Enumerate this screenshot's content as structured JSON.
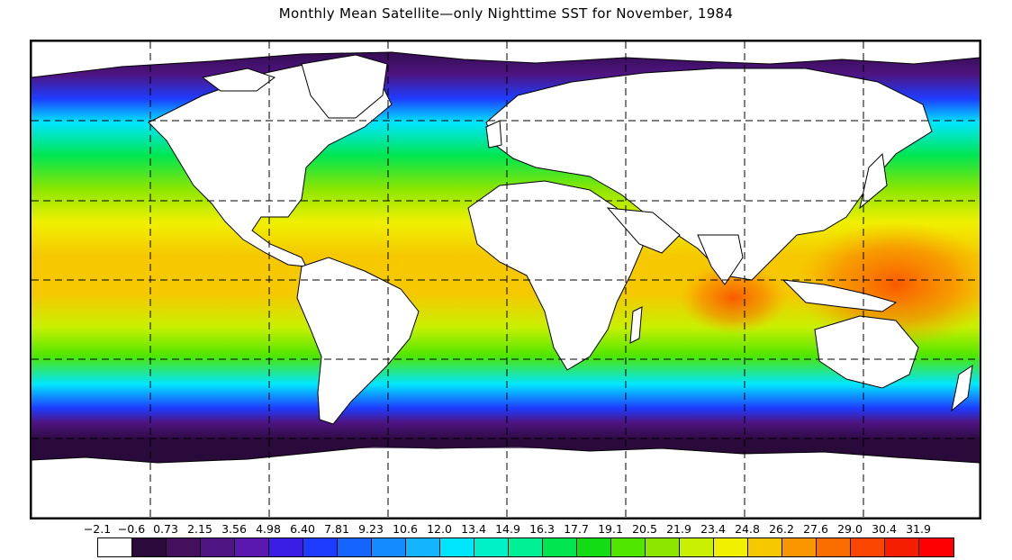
{
  "title": "Monthly Mean Satellite—only Nighttime SST for November, 1984",
  "legend": {
    "labels": [
      "-2.1",
      "-0.6",
      "0.73",
      "2.15",
      "3.56",
      "4.98",
      "6.40",
      "7.81",
      "9.23",
      "10.6",
      "12.0",
      "13.4",
      "14.9",
      "16.3",
      "17.7",
      "19.1",
      "20.5",
      "21.9",
      "23.4",
      "24.8",
      "26.2",
      "27.6",
      "29.0",
      "30.4",
      "31.9"
    ],
    "colors": [
      "#ffffff",
      "#2a0a3a",
      "#44105e",
      "#4e1482",
      "#5a18b0",
      "#3a1ee6",
      "#1e3cff",
      "#1464ff",
      "#148cff",
      "#14b4ff",
      "#00e6ff",
      "#00f0c8",
      "#00f096",
      "#00e650",
      "#14dc14",
      "#50e600",
      "#8ce600",
      "#c8f000",
      "#f0f000",
      "#f5c800",
      "#fa9600",
      "#fa6e00",
      "#fa4600",
      "#f51e00",
      "#ff0000"
    ]
  },
  "colors": {
    "land": "#ffffff",
    "coast": "#000000",
    "grid": "#000000"
  }
}
